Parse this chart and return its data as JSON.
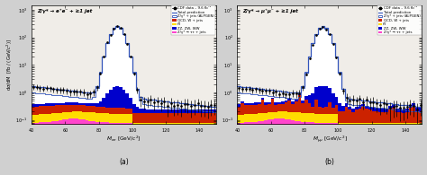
{
  "title_a": "Z/γ* → e⁺e⁻ + ≥1 jet",
  "title_b": "Z/γ* → μ⁺μ⁻ + ≥1 jet",
  "xlabel_a": "Mₑₑ [GeV/c²]",
  "xlabel_b": "Mμμ [GeV/c²]",
  "ylabel": "dσ/dM  [fb / (GeV/c²)]",
  "xlim": [
    40,
    150
  ],
  "ylim": [
    0.07,
    1500
  ],
  "label_a": "(a)",
  "label_b": "(b)",
  "legend_entries": [
    "CDF data – 9.6 fb⁻¹",
    "Total prediction",
    "Z/γ* + jets (ALPGEN)",
    "QCD, W + jets",
    "t̅t̅",
    "ZZ, ZW, WW",
    "Z/γ* → ττ + jets"
  ],
  "color_alpgen_fill": "white",
  "color_alpgen_edge": "#3355bb",
  "color_total": "#3355bb",
  "color_qcd": "#cc2200",
  "color_ttbar": "#ffdd00",
  "color_diboson": "#0000cc",
  "color_tautau": "#ff44cc",
  "color_data": "black",
  "fig_bg": "#d0d0d0",
  "panel_bg": "#f0ede8"
}
